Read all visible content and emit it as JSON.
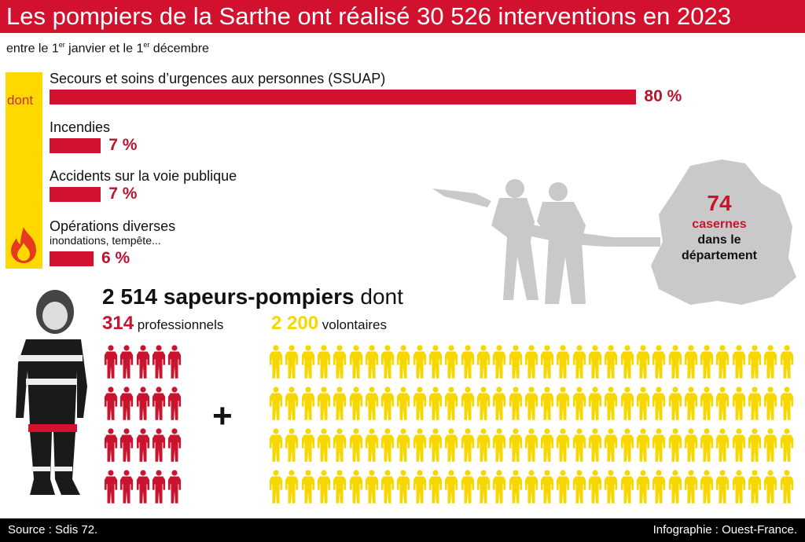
{
  "title": "Les pompiers de la Sarthe ont réalisé 30 526 interventions en 2023",
  "subtitle": {
    "a": "entre le 1",
    "sup1": "er",
    "b": " janvier et le 1",
    "sup2": "er",
    "c": " décembre"
  },
  "dont_label": "dont",
  "chart_data": {
    "type": "bar",
    "title": "Les pompiers de la Sarthe ont réalisé 30 526 interventions en 2023",
    "categories": [
      "Secours et soins d’urgences aux personnes (SSUAP)",
      "Incendies",
      "Accidents sur la voie publique",
      "Opérations diverses"
    ],
    "values": [
      80,
      7,
      7,
      6
    ],
    "value_labels": [
      "80 %",
      "7 %",
      "7 %",
      "6 %"
    ],
    "notes": [
      "",
      "",
      "",
      "inondations, tempête..."
    ],
    "unit": "%",
    "color": "#d2112e"
  },
  "casernes": {
    "number": "74",
    "label": "casernes",
    "rest1": "dans le",
    "rest2": "département"
  },
  "staff": {
    "total": "2 514 sapeurs-pompiers",
    "dont": " dont",
    "pro_number": "314",
    "pro_label": " professionnels",
    "vol_number": "2 200",
    "vol_label": " volontaires",
    "plus": "+",
    "pro_icons": 20,
    "vol_icons": 132,
    "pro_color": "#c8142f",
    "vol_color": "#f6d700"
  },
  "footer": {
    "source": "Source : Sdis 72.",
    "credit": "Infographie : Ouest-France."
  }
}
